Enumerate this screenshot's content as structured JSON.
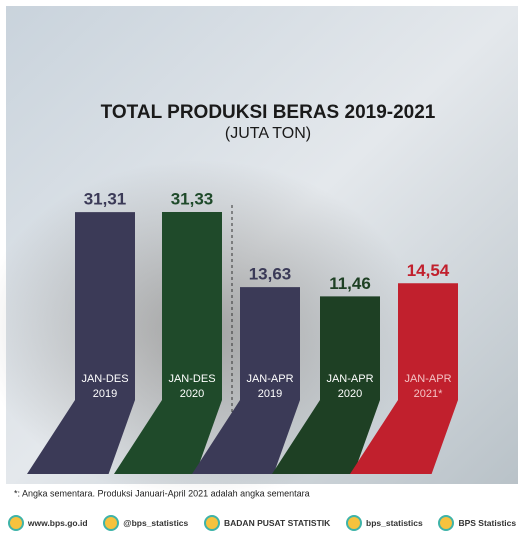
{
  "chart_data": {
    "type": "bar",
    "title": "TOTAL PRODUKSI BERAS 2019-2021",
    "subtitle": "(JUTA TON)",
    "categories": [
      "JAN-DES 2019",
      "JAN-DES 2020",
      "JAN-APR 2019",
      "JAN-APR 2020",
      "JAN-APR 2021*"
    ],
    "values": [
      31.31,
      31.33,
      13.63,
      11.46,
      14.54
    ],
    "value_labels": [
      "31,31",
      "31,33",
      "13,63",
      "11,46",
      "14,54"
    ],
    "colors": [
      "#3b3a57",
      "#1f4a2a",
      "#3b3a57",
      "#1e4024",
      "#c1202d"
    ],
    "footnote": "*: Angka sementara. Produksi Januari-April 2021 adalah angka sementara"
  },
  "footer": {
    "links": [
      "www.bps.go.id",
      "@bps_statistics",
      "BADAN PUSAT STATISTIK",
      "bps_statistics",
      "BPS Statistics"
    ]
  }
}
